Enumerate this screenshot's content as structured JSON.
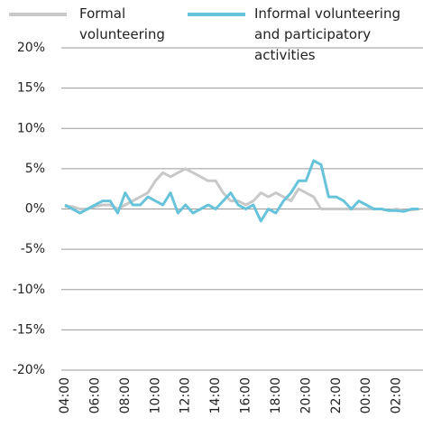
{
  "chart_data": {
    "type": "line",
    "categories": [
      "04:00",
      null,
      null,
      null,
      "06:00",
      null,
      null,
      null,
      "08:00",
      null,
      null,
      null,
      "10:00",
      null,
      null,
      null,
      "12:00",
      null,
      null,
      null,
      "14:00",
      null,
      null,
      null,
      "16:00",
      null,
      null,
      null,
      "18:00",
      null,
      null,
      null,
      "20:00",
      null,
      null,
      null,
      "22:00",
      null,
      null,
      null,
      "00:00",
      null,
      null,
      null,
      "02:00",
      null,
      null,
      null
    ],
    "series": [
      {
        "name": "Formal volunteering",
        "color": "#c8c8c8",
        "values": [
          0.3,
          0.3,
          0,
          0,
          0.3,
          0.5,
          0.5,
          0,
          0.5,
          1,
          1.5,
          2,
          3.5,
          4.5,
          4,
          4.5,
          5,
          4.5,
          4,
          3.5,
          3.5,
          2,
          1,
          1,
          0.5,
          1,
          2,
          1.5,
          2,
          1.5,
          1,
          2.5,
          2,
          1.5,
          0,
          0,
          0,
          0,
          0,
          0,
          0,
          0,
          0,
          -0.2,
          0,
          -0.2,
          -0.1,
          0
        ]
      },
      {
        "name": "Informal volunteering and participatory activities",
        "color": "#66c3da",
        "values": [
          0.5,
          0,
          -0.5,
          0,
          0.5,
          1,
          1,
          -0.5,
          2,
          0.5,
          0.5,
          1.5,
          1,
          0.5,
          2,
          -0.5,
          0.5,
          -0.5,
          0,
          0.5,
          0,
          1,
          2,
          0.5,
          0,
          0.5,
          -1.5,
          0,
          -0.5,
          1,
          2,
          3.5,
          3.5,
          6,
          5.5,
          1.5,
          1.5,
          1,
          0,
          1,
          0.5,
          0,
          0,
          -0.2,
          -0.2,
          -0.3,
          0,
          0
        ]
      }
    ],
    "ylim": [
      -20,
      20
    ],
    "yticks": [
      {
        "value": -20,
        "label": "-20%"
      },
      {
        "value": -15,
        "label": "-15%"
      },
      {
        "value": -10,
        "label": "-10%"
      },
      {
        "value": -5,
        "label": "-5%"
      },
      {
        "value": 0,
        "label": "0%"
      },
      {
        "value": 5,
        "label": "5%"
      },
      {
        "value": 10,
        "label": "10%"
      },
      {
        "value": 15,
        "label": "15%"
      },
      {
        "value": 20,
        "label": "20%"
      }
    ],
    "grid": true
  }
}
